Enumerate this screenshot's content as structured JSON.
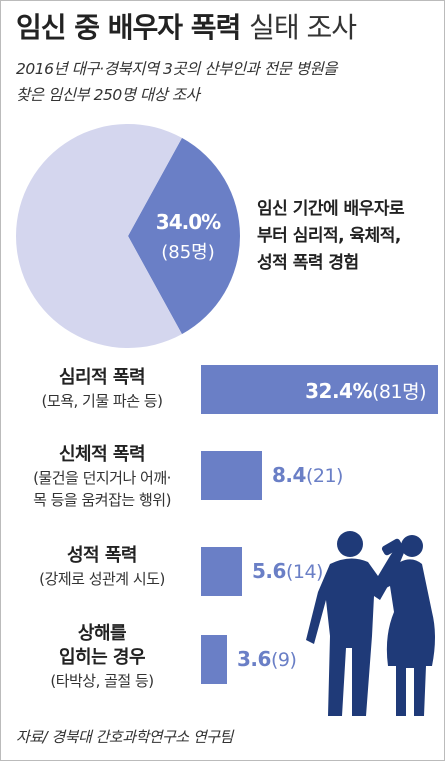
{
  "header": {
    "title_bold": "임신 중 배우자 폭력",
    "title_light": "실태 조사",
    "subtitle_line1": "2016년 대구·경북지역 3곳의 산부인과 전문 병원을",
    "subtitle_line2": "찾은 임신부 250명 대상 조사"
  },
  "pie": {
    "pct_label": "34.0%",
    "count_label": "(85명)",
    "desc_lines": [
      "임신 기간에 배우자로",
      "부터 심리적, 육체적,",
      "성적 폭력 경험"
    ]
  },
  "chart_data": [
    {
      "type": "pie",
      "title": "",
      "slices": [
        {
          "label": "임신 기간에 배우자로부터 심리적, 육체적, 성적 폭력 경험",
          "value": 34.0,
          "count": 85,
          "color": "#6a7fc6"
        },
        {
          "label": "",
          "value": 66.0,
          "color": "#d4d6ee"
        }
      ]
    },
    {
      "type": "bar",
      "orientation": "horizontal",
      "categories": [
        {
          "name": [
            "심리적 폭력"
          ],
          "desc": [
            "(모욕, 기물 파손 등)"
          ]
        },
        {
          "name": [
            "신체적 폭력"
          ],
          "desc": [
            "(물건을 던지거나 어깨·",
            "목 등을 움켜잡는 행위)"
          ]
        },
        {
          "name": [
            "성적 폭력"
          ],
          "desc": [
            "(강제로 성관계 시도)"
          ]
        },
        {
          "name": [
            "상해를",
            "입히는 경우"
          ],
          "desc": [
            "(타박상, 골절 등)"
          ]
        }
      ],
      "values": [
        32.4,
        8.4,
        5.6,
        3.6
      ],
      "value_labels": [
        "32.4%",
        "8.4",
        "5.6",
        "3.6"
      ],
      "count_labels": [
        "(81명)",
        "(21)",
        "(14)",
        "(9)"
      ],
      "xlim": [
        0,
        32.4
      ],
      "color": "#6a7fc6"
    }
  ],
  "source": "자료/ 경북대 간호과학연구소 연구팀"
}
